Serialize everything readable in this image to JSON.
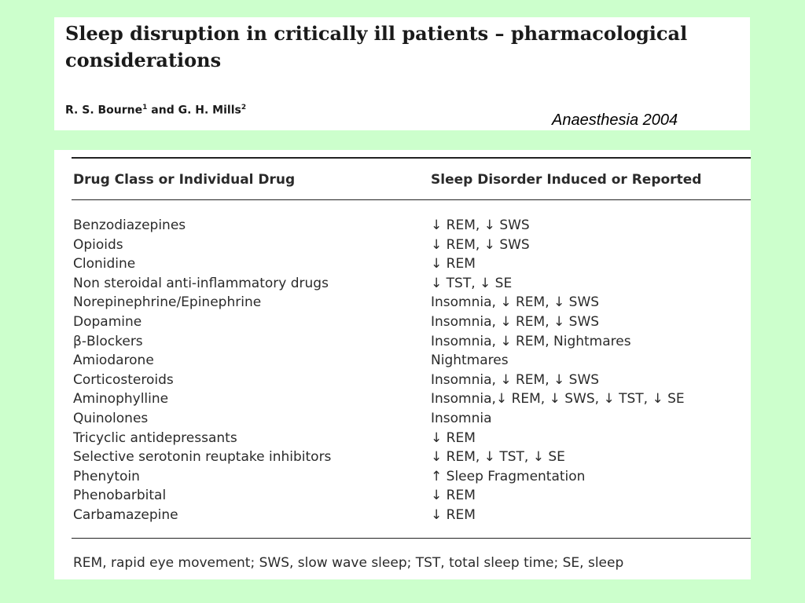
{
  "header": {
    "title": "Sleep disruption in critically ill patients – pharmacological considerations",
    "authors": {
      "first": "R. S. Bourne",
      "first_sup": "1",
      "joiner": " and ",
      "second": "G. H. Mills",
      "second_sup": "2"
    },
    "citation": "Anaesthesia 2004"
  },
  "table": {
    "columns": [
      "Drug Class or Individual Drug",
      "Sleep Disorder Induced or Reported"
    ],
    "rows": [
      {
        "drug": "Benzodiazepines",
        "effect": "↓ REM, ↓ SWS"
      },
      {
        "drug": "Opioids",
        "effect": "↓ REM, ↓ SWS"
      },
      {
        "drug": "Clonidine",
        "effect": "↓ REM"
      },
      {
        "drug": "Non steroidal anti-inflammatory drugs",
        "effect": "↓ TST, ↓ SE"
      },
      {
        "drug": "Norepinephrine/Epinephrine",
        "effect": "Insomnia, ↓ REM, ↓ SWS"
      },
      {
        "drug": "Dopamine",
        "effect": "Insomnia, ↓ REM, ↓ SWS"
      },
      {
        "drug": "β-Blockers",
        "effect": "Insomnia, ↓ REM, Nightmares"
      },
      {
        "drug": "Amiodarone",
        "effect": "Nightmares"
      },
      {
        "drug": "Corticosteroids",
        "effect": "Insomnia, ↓ REM, ↓ SWS"
      },
      {
        "drug": "Aminophylline",
        "effect": "Insomnia,↓ REM, ↓ SWS, ↓ TST, ↓ SE"
      },
      {
        "drug": "Quinolones",
        "effect": "Insomnia"
      },
      {
        "drug": "Tricyclic antidepressants",
        "effect": "↓ REM"
      },
      {
        "drug": "Selective serotonin reuptake inhibitors",
        "effect": "↓ REM, ↓ TST, ↓ SE"
      },
      {
        "drug": "Phenytoin",
        "effect": "↑ Sleep Fragmentation"
      },
      {
        "drug": "Phenobarbital",
        "effect": "↓ REM"
      },
      {
        "drug": "Carbamazepine",
        "effect": "↓ REM"
      }
    ],
    "footnote": "REM, rapid eye movement; SWS, slow wave sleep; TST, total sleep time; SE, sleep"
  },
  "colors": {
    "background": "#ccffcc",
    "panel": "#ffffff",
    "text": "#2a2a2a"
  }
}
